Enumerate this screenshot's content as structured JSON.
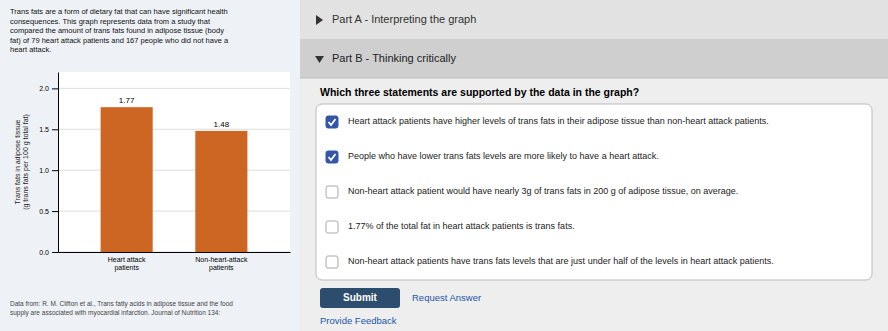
{
  "chart_data": {
    "type": "bar",
    "categories": [
      "Heart attack\npatients",
      "Non-heart-attack\npatients"
    ],
    "values": [
      1.77,
      1.48
    ],
    "color": "#cc6622",
    "ylabel": "Trans fats in adipose tissue\n(g trans fats per 100 g total fat)",
    "ylim": [
      0,
      2.2
    ],
    "yticks": [
      {
        "value": 0.0,
        "label": "0.0"
      },
      0.5,
      {
        "value": 1.0,
        "label": "1.0"
      },
      1.5,
      {
        "value": 2.0,
        "label": "2.0"
      }
    ],
    "grid": true,
    "data_labels": true
  },
  "page": {
    "intro_text": "Trans fats are a form of dietary fat that can have significant health\nconsequences. This graph represents data from a study that\ncompared the amount of trans fats found in adipose tissue (body\nfat) of 79 heart attack patients and 167 people who did not have a\nheart attack.",
    "footnote": "Data from: R. M. Clifton et al., Trans fatty acids in adipose tissue and the food\nsupply are associated with myocardial infarction. Journal of Nutrition 134:",
    "part_a_text": "Part A - Interpreting the graph",
    "part_b_text": "Part B - Thinking critically",
    "question_text": "Which three statements are supported by the data in the graph?",
    "options": [
      "Heart attack patients have higher levels of trans fats in their adipose tissue than non-heart attack patients.",
      "People who have lower trans fats levels are more likely to have a heart attack.",
      "Non-heart attack patient would have nearly 3g of trans fats in 200 g of adipose tissue, on average.",
      "1.77% of the total fat in heart attack patients is trans fats.",
      "Non-heart attack patients have trans fats levels that are just under half of the levels in heart attack patients."
    ],
    "checked": [
      true,
      true,
      false,
      false,
      false
    ],
    "submit_label": "Submit",
    "request_answer_label": "Request Answer",
    "feedback_label": "Provide Feedback"
  }
}
